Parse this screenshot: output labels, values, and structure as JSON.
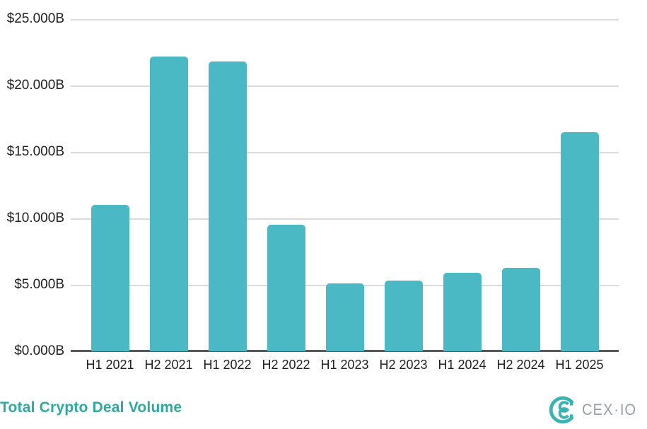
{
  "chart_data": {
    "type": "bar",
    "title": "Total Crypto Deal Volume",
    "categories": [
      "H1 2021",
      "H2 2021",
      "H1 2022",
      "H2 2022",
      "H1 2023",
      "H2 2023",
      "H1 2024",
      "H2 2024",
      "H1 2025"
    ],
    "values": [
      11.0,
      22.2,
      21.8,
      9.5,
      5.1,
      5.3,
      5.9,
      6.3,
      16.5
    ],
    "values_unit": "USD billions",
    "y_ticks": [
      "$25.000B",
      "$20.000B",
      "$15.000B",
      "$10.000B",
      "$5.000B",
      "$0.000B"
    ],
    "ylim": [
      0,
      25
    ],
    "grid": true,
    "legend": "none",
    "bar_color": "#4ab9c4"
  },
  "footer": {
    "title": "Total Crypto Deal Volume",
    "logo": {
      "mark_icon": "cexio-logomark",
      "text_main": "CEX",
      "text_separator": "·",
      "text_suffix": "IO"
    }
  },
  "colors": {
    "bar": "#4ab9c4",
    "gridline": "#dadada",
    "axis_line": "#55585a",
    "axis_text": "#1f1f1f",
    "title_text": "#2ca9a1",
    "logo_mark": "#3ab4b1",
    "logo_text": "#9aa1a6",
    "background": "#ffffff"
  }
}
